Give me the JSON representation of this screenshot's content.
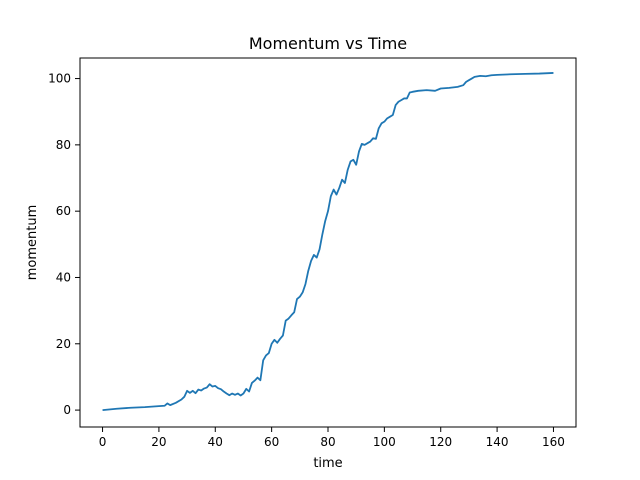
{
  "chart_data": {
    "type": "line",
    "title": "Momentum vs Time",
    "xlabel": "time",
    "ylabel": "momentum",
    "xlim": [
      -8,
      168
    ],
    "ylim": [
      -5.1,
      106.2
    ],
    "xticks": [
      0,
      20,
      40,
      60,
      80,
      100,
      120,
      140,
      160
    ],
    "yticks": [
      0,
      20,
      40,
      60,
      80,
      100
    ],
    "grid": false,
    "legend": "none",
    "series": [
      {
        "color": "#1f77b4",
        "points": [
          [
            0,
            0
          ],
          [
            5,
            0.4
          ],
          [
            10,
            0.7
          ],
          [
            15,
            0.9
          ],
          [
            20,
            1.2
          ],
          [
            22,
            1.3
          ],
          [
            23,
            2.0
          ],
          [
            24,
            1.5
          ],
          [
            26,
            2.2
          ],
          [
            28,
            3.2
          ],
          [
            29,
            4.0
          ],
          [
            30,
            5.8
          ],
          [
            31,
            5.2
          ],
          [
            32,
            5.8
          ],
          [
            33,
            5.1
          ],
          [
            34,
            6.2
          ],
          [
            35,
            5.9
          ],
          [
            36,
            6.5
          ],
          [
            37,
            6.8
          ],
          [
            38,
            7.8
          ],
          [
            39,
            7.1
          ],
          [
            40,
            7.3
          ],
          [
            41,
            6.6
          ],
          [
            42,
            6.3
          ],
          [
            43,
            5.6
          ],
          [
            44,
            5.0
          ],
          [
            45,
            4.5
          ],
          [
            46,
            5.0
          ],
          [
            47,
            4.6
          ],
          [
            48,
            5.0
          ],
          [
            49,
            4.4
          ],
          [
            50,
            5.0
          ],
          [
            51,
            6.4
          ],
          [
            52,
            5.6
          ],
          [
            53,
            8.2
          ],
          [
            54,
            8.9
          ],
          [
            55,
            9.8
          ],
          [
            56,
            9.0
          ],
          [
            57,
            15.0
          ],
          [
            58,
            16.5
          ],
          [
            59,
            17.2
          ],
          [
            60,
            20.0
          ],
          [
            61,
            21.2
          ],
          [
            62,
            20.3
          ],
          [
            63,
            21.5
          ],
          [
            64,
            22.5
          ],
          [
            65,
            27.0
          ],
          [
            66,
            27.6
          ],
          [
            67,
            28.6
          ],
          [
            68,
            29.5
          ],
          [
            69,
            33.5
          ],
          [
            70,
            34.2
          ],
          [
            71,
            35.5
          ],
          [
            72,
            38.0
          ],
          [
            73,
            42.0
          ],
          [
            74,
            45.0
          ],
          [
            75,
            46.8
          ],
          [
            76,
            46.0
          ],
          [
            77,
            48.5
          ],
          [
            78,
            53.0
          ],
          [
            79,
            57.0
          ],
          [
            80,
            60.0
          ],
          [
            81,
            64.5
          ],
          [
            82,
            66.5
          ],
          [
            83,
            65.0
          ],
          [
            84,
            67.0
          ],
          [
            85,
            69.5
          ],
          [
            86,
            68.5
          ],
          [
            87,
            72.5
          ],
          [
            88,
            75.0
          ],
          [
            89,
            75.5
          ],
          [
            90,
            74.0
          ],
          [
            91,
            78.0
          ],
          [
            92,
            80.3
          ],
          [
            93,
            80.0
          ],
          [
            94,
            80.5
          ],
          [
            95,
            81.0
          ],
          [
            96,
            82.0
          ],
          [
            97,
            81.8
          ],
          [
            98,
            85.0
          ],
          [
            99,
            86.5
          ],
          [
            100,
            87.0
          ],
          [
            101,
            88.0
          ],
          [
            102,
            88.5
          ],
          [
            103,
            89.0
          ],
          [
            104,
            92.0
          ],
          [
            105,
            93.0
          ],
          [
            106,
            93.5
          ],
          [
            107,
            94.0
          ],
          [
            108,
            94.0
          ],
          [
            109,
            95.8
          ],
          [
            110,
            96.0
          ],
          [
            112,
            96.3
          ],
          [
            115,
            96.5
          ],
          [
            118,
            96.3
          ],
          [
            120,
            97.0
          ],
          [
            123,
            97.2
          ],
          [
            126,
            97.5
          ],
          [
            128,
            98.0
          ],
          [
            129,
            99.0
          ],
          [
            130,
            99.5
          ],
          [
            131,
            100.0
          ],
          [
            132,
            100.5
          ],
          [
            134,
            100.8
          ],
          [
            136,
            100.7
          ],
          [
            138,
            101.0
          ],
          [
            140,
            101.1
          ],
          [
            145,
            101.3
          ],
          [
            150,
            101.4
          ],
          [
            155,
            101.5
          ],
          [
            160,
            101.7
          ]
        ]
      }
    ]
  }
}
